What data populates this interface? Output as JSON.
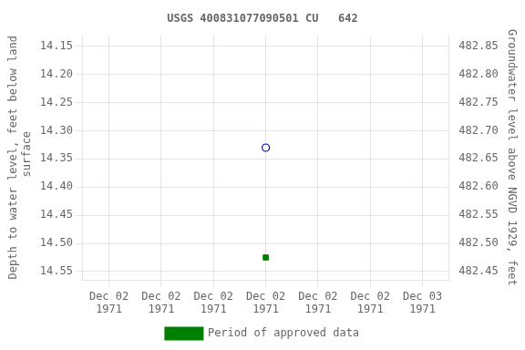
{
  "chart_data": {
    "type": "scatter",
    "title": "USGS 400831077090501 CU   642",
    "categories": [
      "Dec 02\n1971",
      "Dec 02\n1971",
      "Dec 02\n1971",
      "Dec 02\n1971",
      "Dec 02\n1971",
      "Dec 02\n1971",
      "Dec 03\n1971"
    ],
    "series": [
      {
        "color": "#0000cc",
        "marker": "open_circle",
        "values": [
          null,
          null,
          null,
          14.33,
          null,
          null,
          null
        ]
      },
      {
        "name": "Period of approved data",
        "color": "#008000",
        "marker": "square",
        "values": [
          null,
          null,
          null,
          14.525,
          null,
          null,
          null
        ]
      }
    ],
    "ylabel": "Depth to water level, feet below land\n surface",
    "y2label": "Groundwater level above NGVD 1929, feet",
    "ylim": [
      14.565,
      14.13
    ],
    "yticks": [
      14.15,
      {
        "value": 14.2,
        "label": "14.20"
      },
      14.25,
      {
        "value": 14.3,
        "label": "14.30"
      },
      14.35,
      {
        "value": 14.4,
        "label": "14.40"
      },
      14.45,
      {
        "value": 14.5,
        "label": "14.50"
      },
      14.55
    ],
    "y2lim": [
      482.435,
      482.87
    ],
    "y2ticks": [
      482.85,
      {
        "value": 482.8,
        "label": "482.80"
      },
      482.75,
      {
        "value": 482.7,
        "label": "482.70"
      },
      482.65,
      {
        "value": 482.6,
        "label": "482.60"
      },
      482.55,
      {
        "value": 482.5,
        "label": "482.50"
      },
      482.45
    ],
    "grid": true,
    "legend": "bottom"
  }
}
